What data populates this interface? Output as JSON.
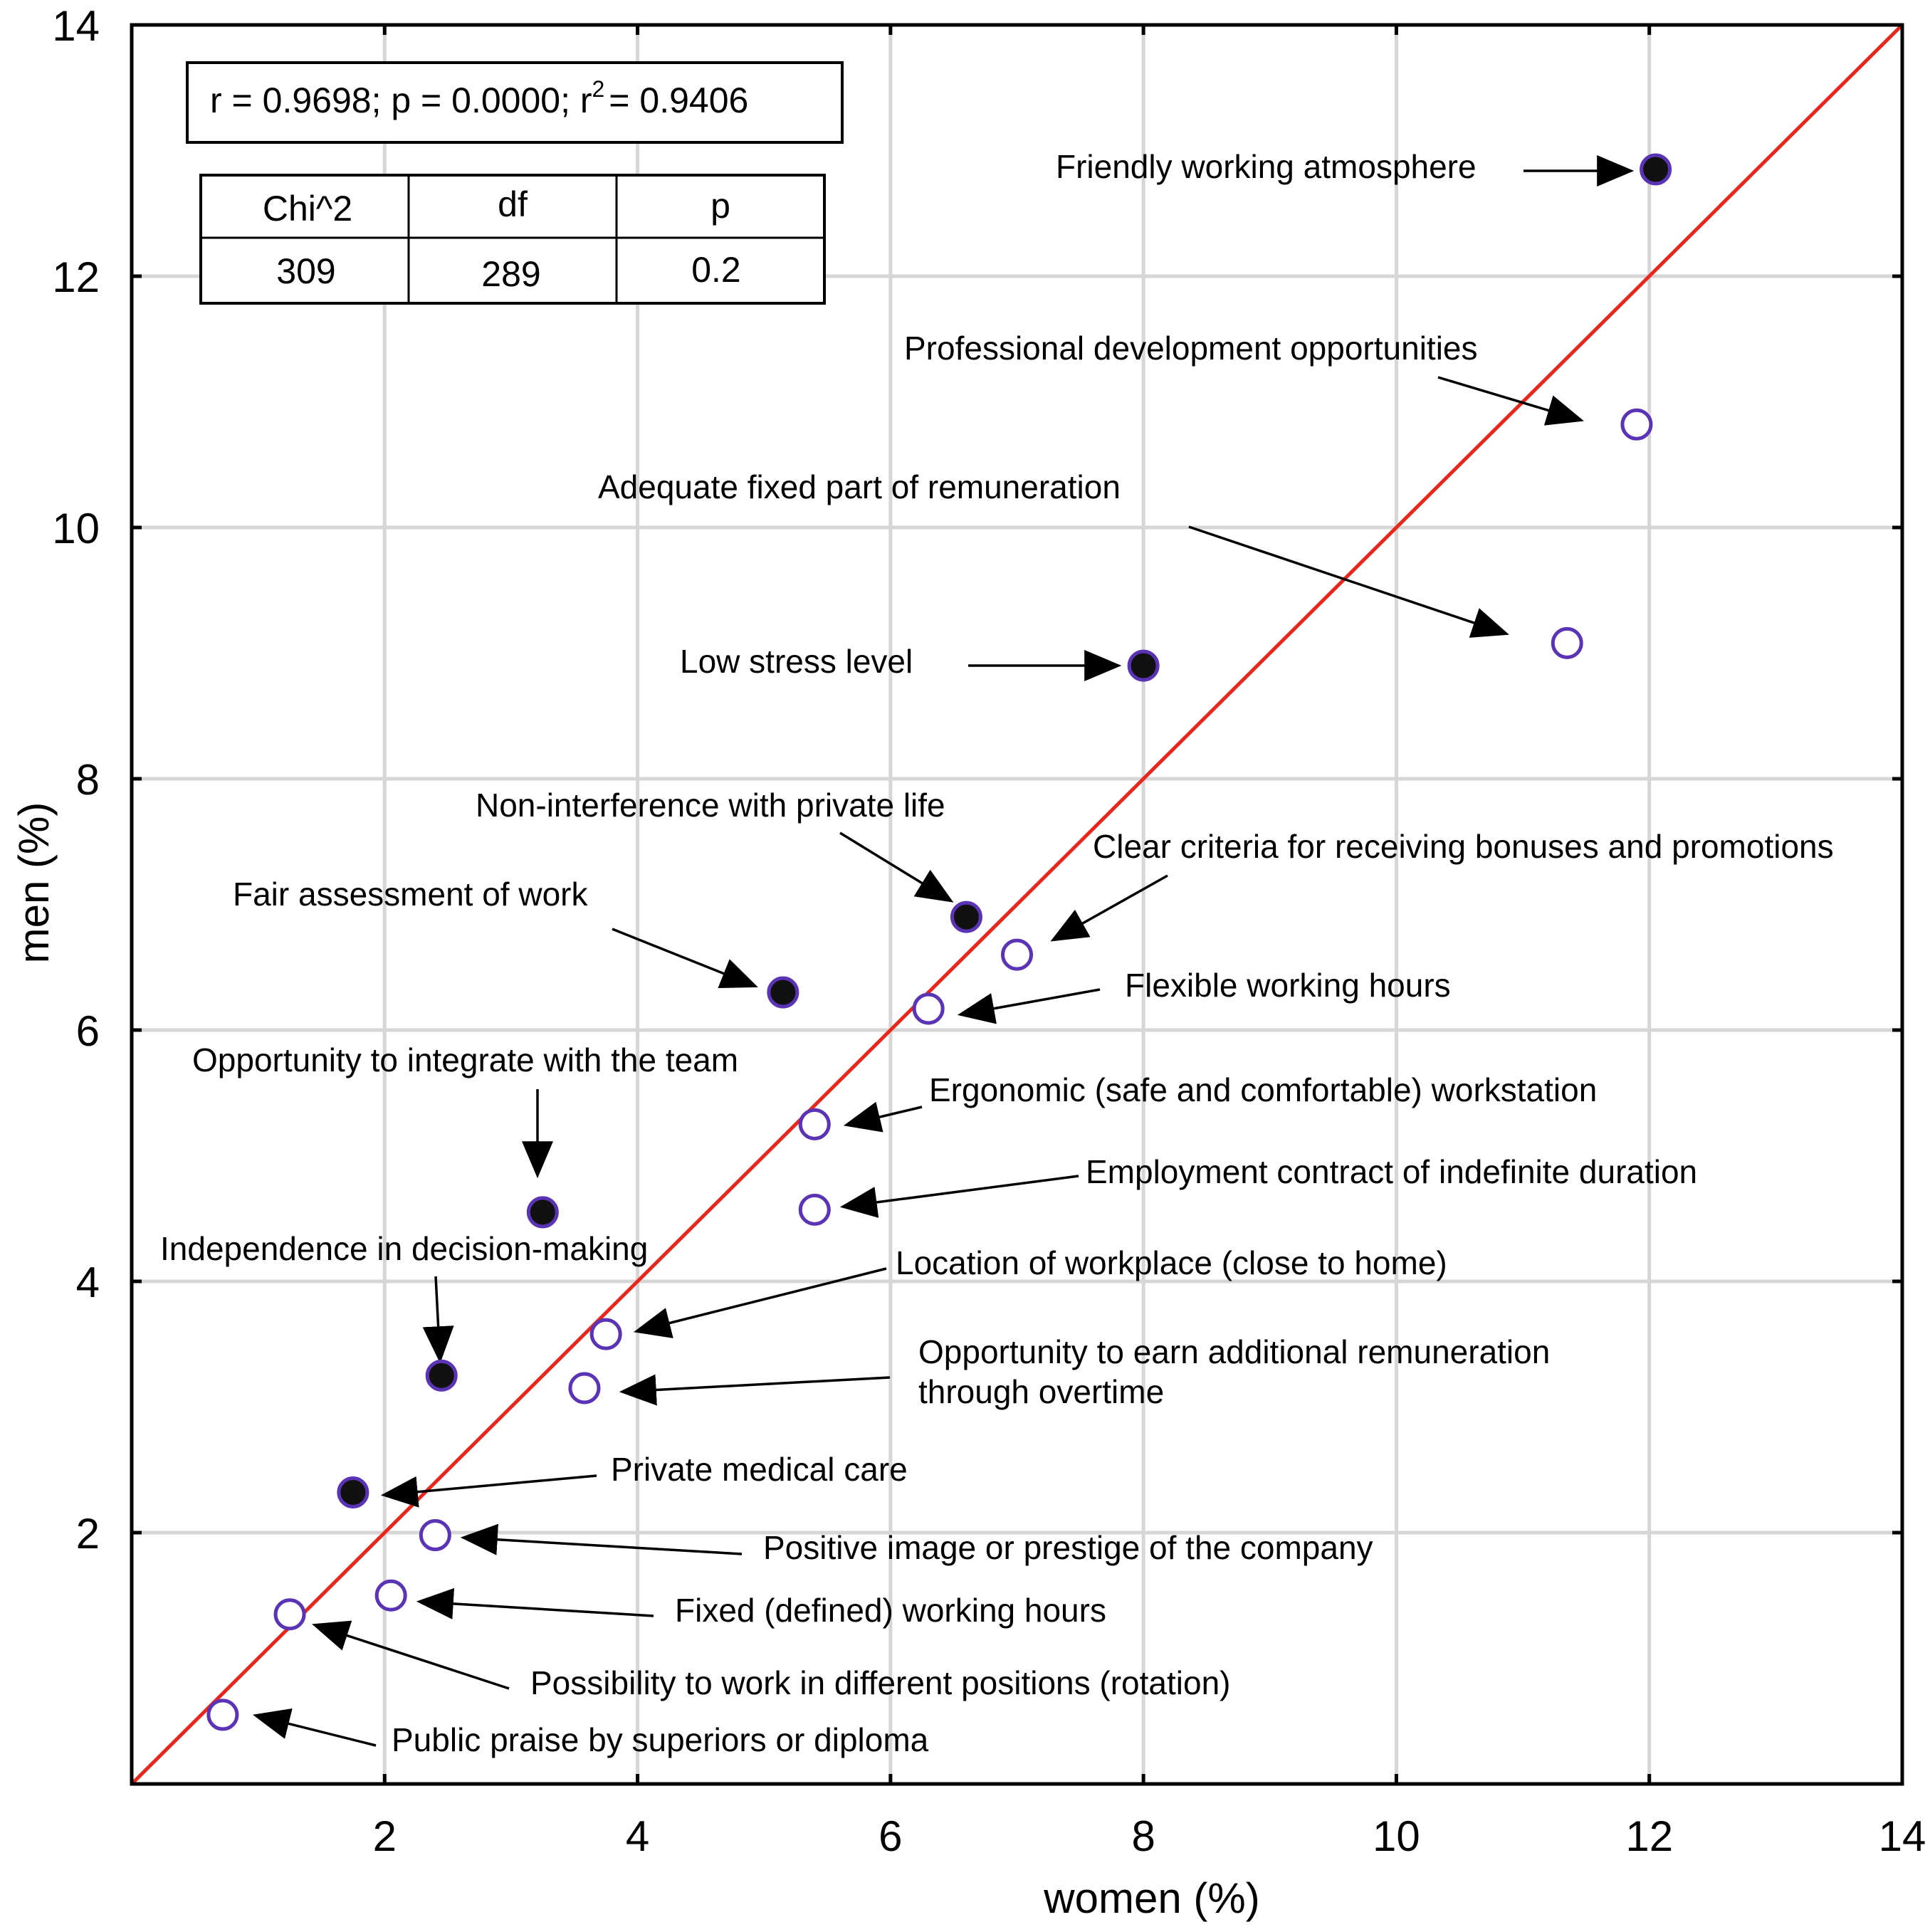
{
  "chart_data": {
    "type": "scatter",
    "title": "",
    "xlabel": "women (%)",
    "ylabel": "men (%)",
    "xlim": [
      0,
      14
    ],
    "ylim": [
      0,
      14
    ],
    "x_ticks": [
      2,
      4,
      6,
      8,
      10,
      12,
      14
    ],
    "y_ticks": [
      2,
      4,
      6,
      8,
      10,
      12,
      14
    ],
    "grid": true,
    "reference_line": {
      "from": [
        0,
        0
      ],
      "to": [
        14,
        14
      ],
      "color": "#e8261c"
    },
    "stats_box": {
      "r_text": "r = 0.9698; p = 0.0000; r",
      "r_sup": "2",
      "r2_text": "= 0.9406"
    },
    "chi_table": {
      "headers": [
        "Chi^2",
        "df",
        "p"
      ],
      "values": [
        "309",
        "289",
        "0.2"
      ]
    },
    "series": [
      {
        "name": "filled",
        "marker": "filled-circle",
        "color": "#111111",
        "edge": "#5b34b5",
        "points": [
          {
            "label": "Friendly working atmosphere",
            "x": 12.05,
            "y": 12.85
          },
          {
            "label": "Low stress level",
            "x": 8.0,
            "y": 8.9
          },
          {
            "label": "Non-interference with private life",
            "x": 6.6,
            "y": 6.9
          },
          {
            "label": "Fair assessment of work",
            "x": 5.15,
            "y": 6.3
          },
          {
            "label": "Opportunity to integrate with the team",
            "x": 3.25,
            "y": 4.55
          },
          {
            "label": "Independence in decision-making",
            "x": 2.45,
            "y": 3.25
          },
          {
            "label": "Private medical care",
            "x": 1.75,
            "y": 2.32
          }
        ]
      },
      {
        "name": "hollow",
        "marker": "open-circle",
        "color": "#5b34b5",
        "points": [
          {
            "label": "Professional development opportunities",
            "x": 11.9,
            "y": 10.82
          },
          {
            "label": "Adequate fixed part of remuneration",
            "x": 11.35,
            "y": 9.08
          },
          {
            "label": "Clear criteria for receiving bonuses and promotions",
            "x": 7.0,
            "y": 6.6
          },
          {
            "label": "Flexible working hours",
            "x": 6.3,
            "y": 6.17
          },
          {
            "label": "Ergonomic (safe and comfortable) workstation",
            "x": 5.4,
            "y": 5.25
          },
          {
            "label": "Employment contract of indefinite duration",
            "x": 5.4,
            "y": 4.57
          },
          {
            "label": "Location of workplace (close to home)",
            "x": 3.75,
            "y": 3.58
          },
          {
            "label": "Opportunity to earn additional remuneration through overtime",
            "x": 3.58,
            "y": 3.15
          },
          {
            "label": "Positive image or prestige of the company",
            "x": 2.4,
            "y": 1.98
          },
          {
            "label": "Fixed (defined) working hours",
            "x": 2.05,
            "y": 1.5
          },
          {
            "label": "Possibility to work in different positions (rotation)",
            "x": 1.25,
            "y": 1.35
          },
          {
            "label": "Public praise by superiors or diploma",
            "x": 0.72,
            "y": 0.55
          }
        ]
      }
    ],
    "annotations": [
      {
        "lines": [
          "Friendly working atmosphere"
        ]
      },
      {
        "lines": [
          "Professional development opportunities"
        ]
      },
      {
        "lines": [
          "Adequate fixed part of remuneration"
        ]
      },
      {
        "lines": [
          "Low stress level"
        ]
      },
      {
        "lines": [
          "Non-interference with private life"
        ]
      },
      {
        "lines": [
          "Clear criteria for receiving bonuses and promotions"
        ]
      },
      {
        "lines": [
          "Fair assessment of work"
        ]
      },
      {
        "lines": [
          "Flexible working hours"
        ]
      },
      {
        "lines": [
          "Opportunity to integrate with the team"
        ]
      },
      {
        "lines": [
          "Ergonomic (safe and comfortable) workstation"
        ]
      },
      {
        "lines": [
          "Employment contract of indefinite duration"
        ]
      },
      {
        "lines": [
          "Independence in decision-making"
        ]
      },
      {
        "lines": [
          "Location of workplace (close to home)"
        ]
      },
      {
        "lines": [
          "Opportunity to earn additional remuneration",
          "through overtime"
        ]
      },
      {
        "lines": [
          "Private medical care"
        ]
      },
      {
        "lines": [
          "Positive image or prestige of the company"
        ]
      },
      {
        "lines": [
          "Fixed (defined) working hours"
        ]
      },
      {
        "lines": [
          "Possibility to work in different positions (rotation)"
        ]
      },
      {
        "lines": [
          "Public praise by superiors or diploma"
        ]
      }
    ]
  }
}
